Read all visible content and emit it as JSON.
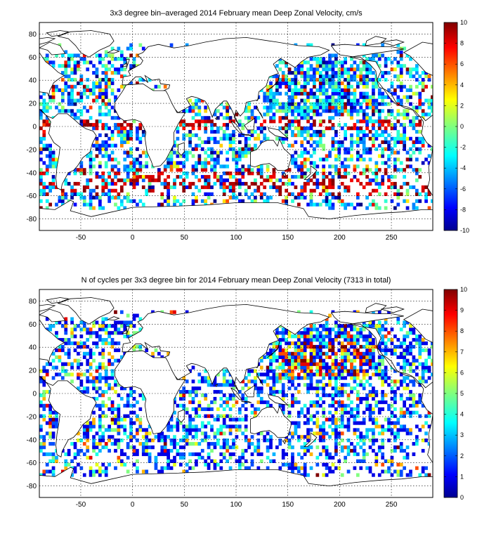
{
  "chart_data": [
    {
      "type": "heatmap",
      "title": "3x3 degree bin–averaged 2014 February mean Deep Zonal Velocity, cm/s",
      "xlabel": "",
      "ylabel": "",
      "x_ticks": [
        -50,
        0,
        50,
        100,
        150,
        200,
        250
      ],
      "y_ticks": [
        -80,
        -60,
        -40,
        -20,
        0,
        20,
        40,
        60,
        80
      ],
      "xlim": [
        -90,
        290
      ],
      "ylim": [
        -90,
        90
      ],
      "bin_size_deg": 3,
      "colorbar": {
        "min": -10,
        "max": 10,
        "ticks": [
          -10,
          -8,
          -6,
          -4,
          -2,
          0,
          2,
          4,
          6,
          8,
          10
        ],
        "colormap": "jet"
      },
      "grid": true,
      "seed": 7
    },
    {
      "type": "heatmap",
      "title": "N of cycles per 3x3 degree bin for 2014 February mean Deep Zonal Velocity (7313 in total)",
      "xlabel": "",
      "ylabel": "",
      "x_ticks": [
        -50,
        0,
        50,
        100,
        150,
        200,
        250
      ],
      "y_ticks": [
        -80,
        -60,
        -40,
        -20,
        0,
        20,
        40,
        60,
        80
      ],
      "xlim": [
        -90,
        290
      ],
      "ylim": [
        -90,
        90
      ],
      "bin_size_deg": 3,
      "colorbar": {
        "min": 0,
        "max": 10,
        "ticks": [
          0,
          1,
          2,
          3,
          4,
          5,
          6,
          7,
          8,
          9,
          10
        ],
        "colormap": "jet"
      },
      "total_cycles": 7313,
      "grid": true,
      "seed": 13
    }
  ]
}
